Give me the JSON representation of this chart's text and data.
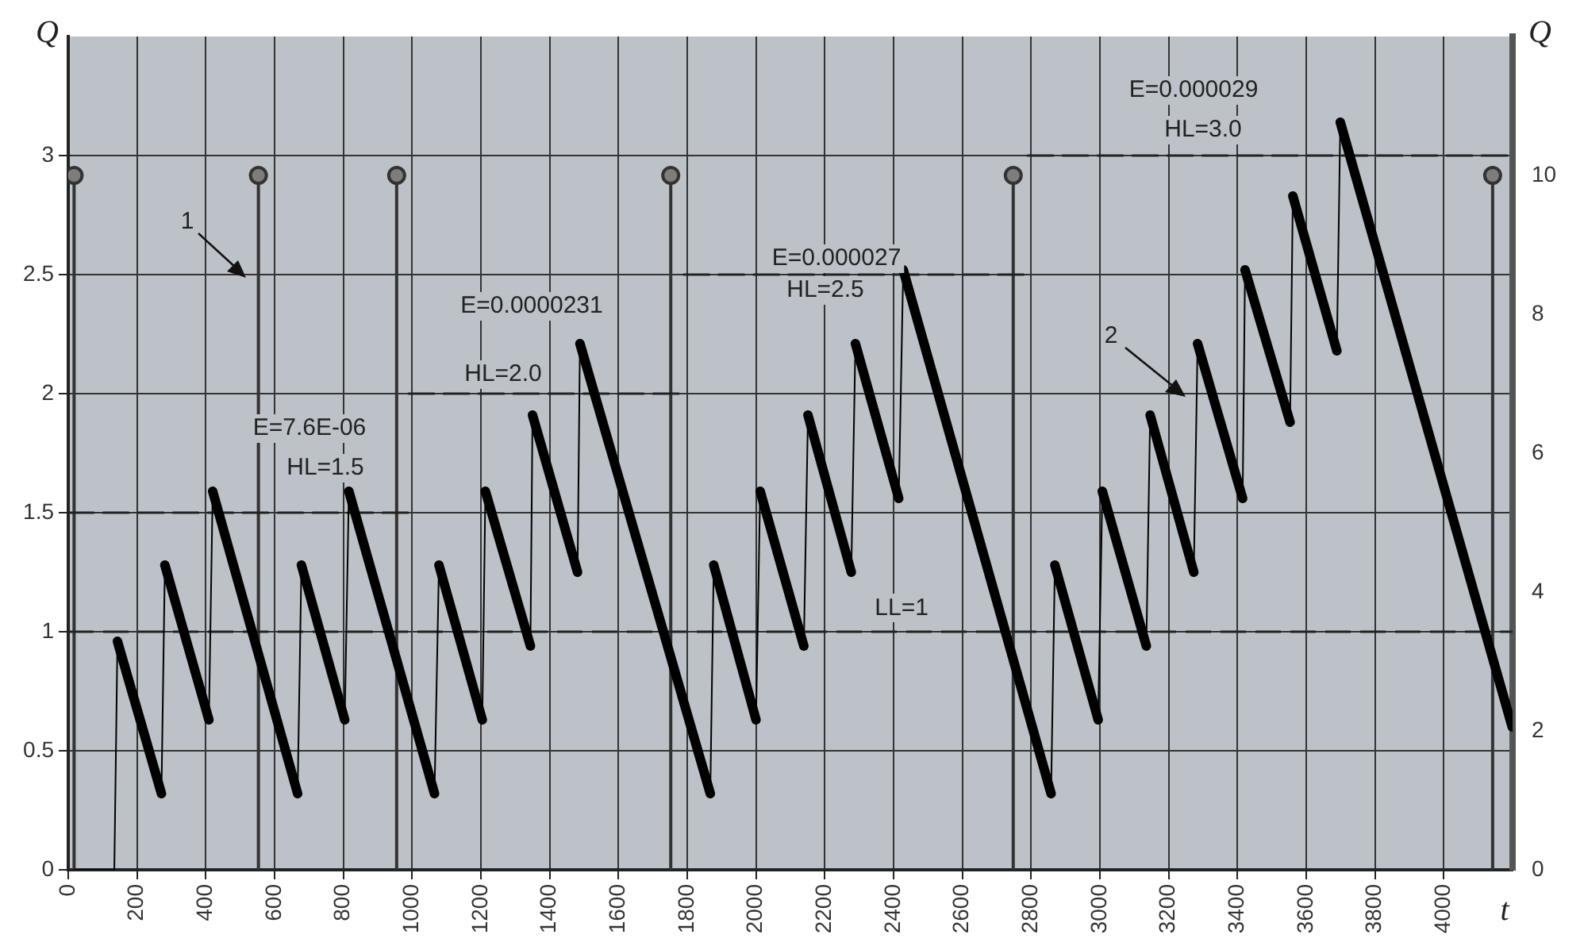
{
  "chart_data": {
    "type": "line",
    "xlabel": "t",
    "ylabel": "Q",
    "y2label": "Q",
    "xlim": [
      0,
      4200
    ],
    "xticks": [
      0,
      200,
      400,
      600,
      800,
      1000,
      1200,
      1400,
      1600,
      1800,
      2000,
      2200,
      2400,
      2600,
      2800,
      3000,
      3200,
      3400,
      3600,
      3800,
      4000
    ],
    "ylim": [
      0,
      3.5
    ],
    "yticks": [
      0,
      0.5,
      1,
      1.5,
      2,
      2.5,
      3
    ],
    "y2lim": [
      0,
      12
    ],
    "y2ticks": [
      0,
      2,
      4,
      6,
      8,
      10
    ],
    "grid": true,
    "series": [
      {
        "type": "lollipop",
        "axis": "y2",
        "color": "#333333",
        "x": [
          17,
          553,
          955,
          1752,
          2748,
          4142
        ],
        "values": [
          10,
          10,
          10,
          10,
          10,
          10
        ]
      },
      {
        "color": "#000000",
        "x": [
          17,
          134,
          143,
          271,
          281,
          409,
          420,
          667,
          678,
          804,
          816,
          1065,
          1078,
          1204,
          1213,
          1344,
          1350,
          1481,
          1488,
          1867,
          1877,
          2000,
          2012,
          2139,
          2151,
          2277,
          2289,
          2415,
          2428,
          2858,
          2869,
          2995,
          3007,
          3135,
          3146,
          3273,
          3284,
          3415,
          3422,
          3553,
          3561,
          3689,
          3699,
          4199
        ],
        "values": [
          0,
          0,
          0.96,
          0.32,
          1.28,
          0.63,
          1.59,
          0.32,
          1.28,
          0.63,
          1.59,
          0.32,
          1.28,
          0.63,
          1.59,
          0.94,
          1.91,
          1.25,
          2.21,
          0.32,
          1.28,
          0.63,
          1.59,
          0.94,
          1.91,
          1.25,
          2.21,
          1.56,
          2.52,
          0.32,
          1.28,
          0.63,
          1.59,
          0.94,
          1.91,
          1.25,
          2.21,
          1.56,
          2.52,
          1.88,
          2.83,
          2.18,
          3.14,
          0.6
        ]
      },
      {
        "type": "line",
        "line_style": "dashed",
        "color": "#222222",
        "x": [
          0,
          990
        ],
        "values": [
          1.5,
          1.5
        ]
      },
      {
        "type": "line",
        "line_style": "dashed",
        "color": "#222222",
        "x": [
          990,
          1790
        ],
        "values": [
          2,
          2
        ]
      },
      {
        "type": "line",
        "line_style": "dashed",
        "color": "#222222",
        "x": [
          1790,
          2790
        ],
        "values": [
          2.5,
          2.5
        ]
      },
      {
        "type": "line",
        "line_style": "dashed",
        "color": "#222222",
        "x": [
          2790,
          4200
        ],
        "values": [
          3,
          3
        ]
      }
    ],
    "ref_lines": [
      {
        "axis": "y",
        "value": 1,
        "label": "LL=1",
        "line_style": "dashed",
        "color": "#222222"
      }
    ],
    "annotations": [
      "E=7.6E-06",
      "HL=1.5",
      "E=0.0000231",
      "HL=2.0",
      "E=0.000027",
      "HL=2.5",
      "E=0.000029",
      "HL=3.0",
      "1",
      "2"
    ]
  }
}
